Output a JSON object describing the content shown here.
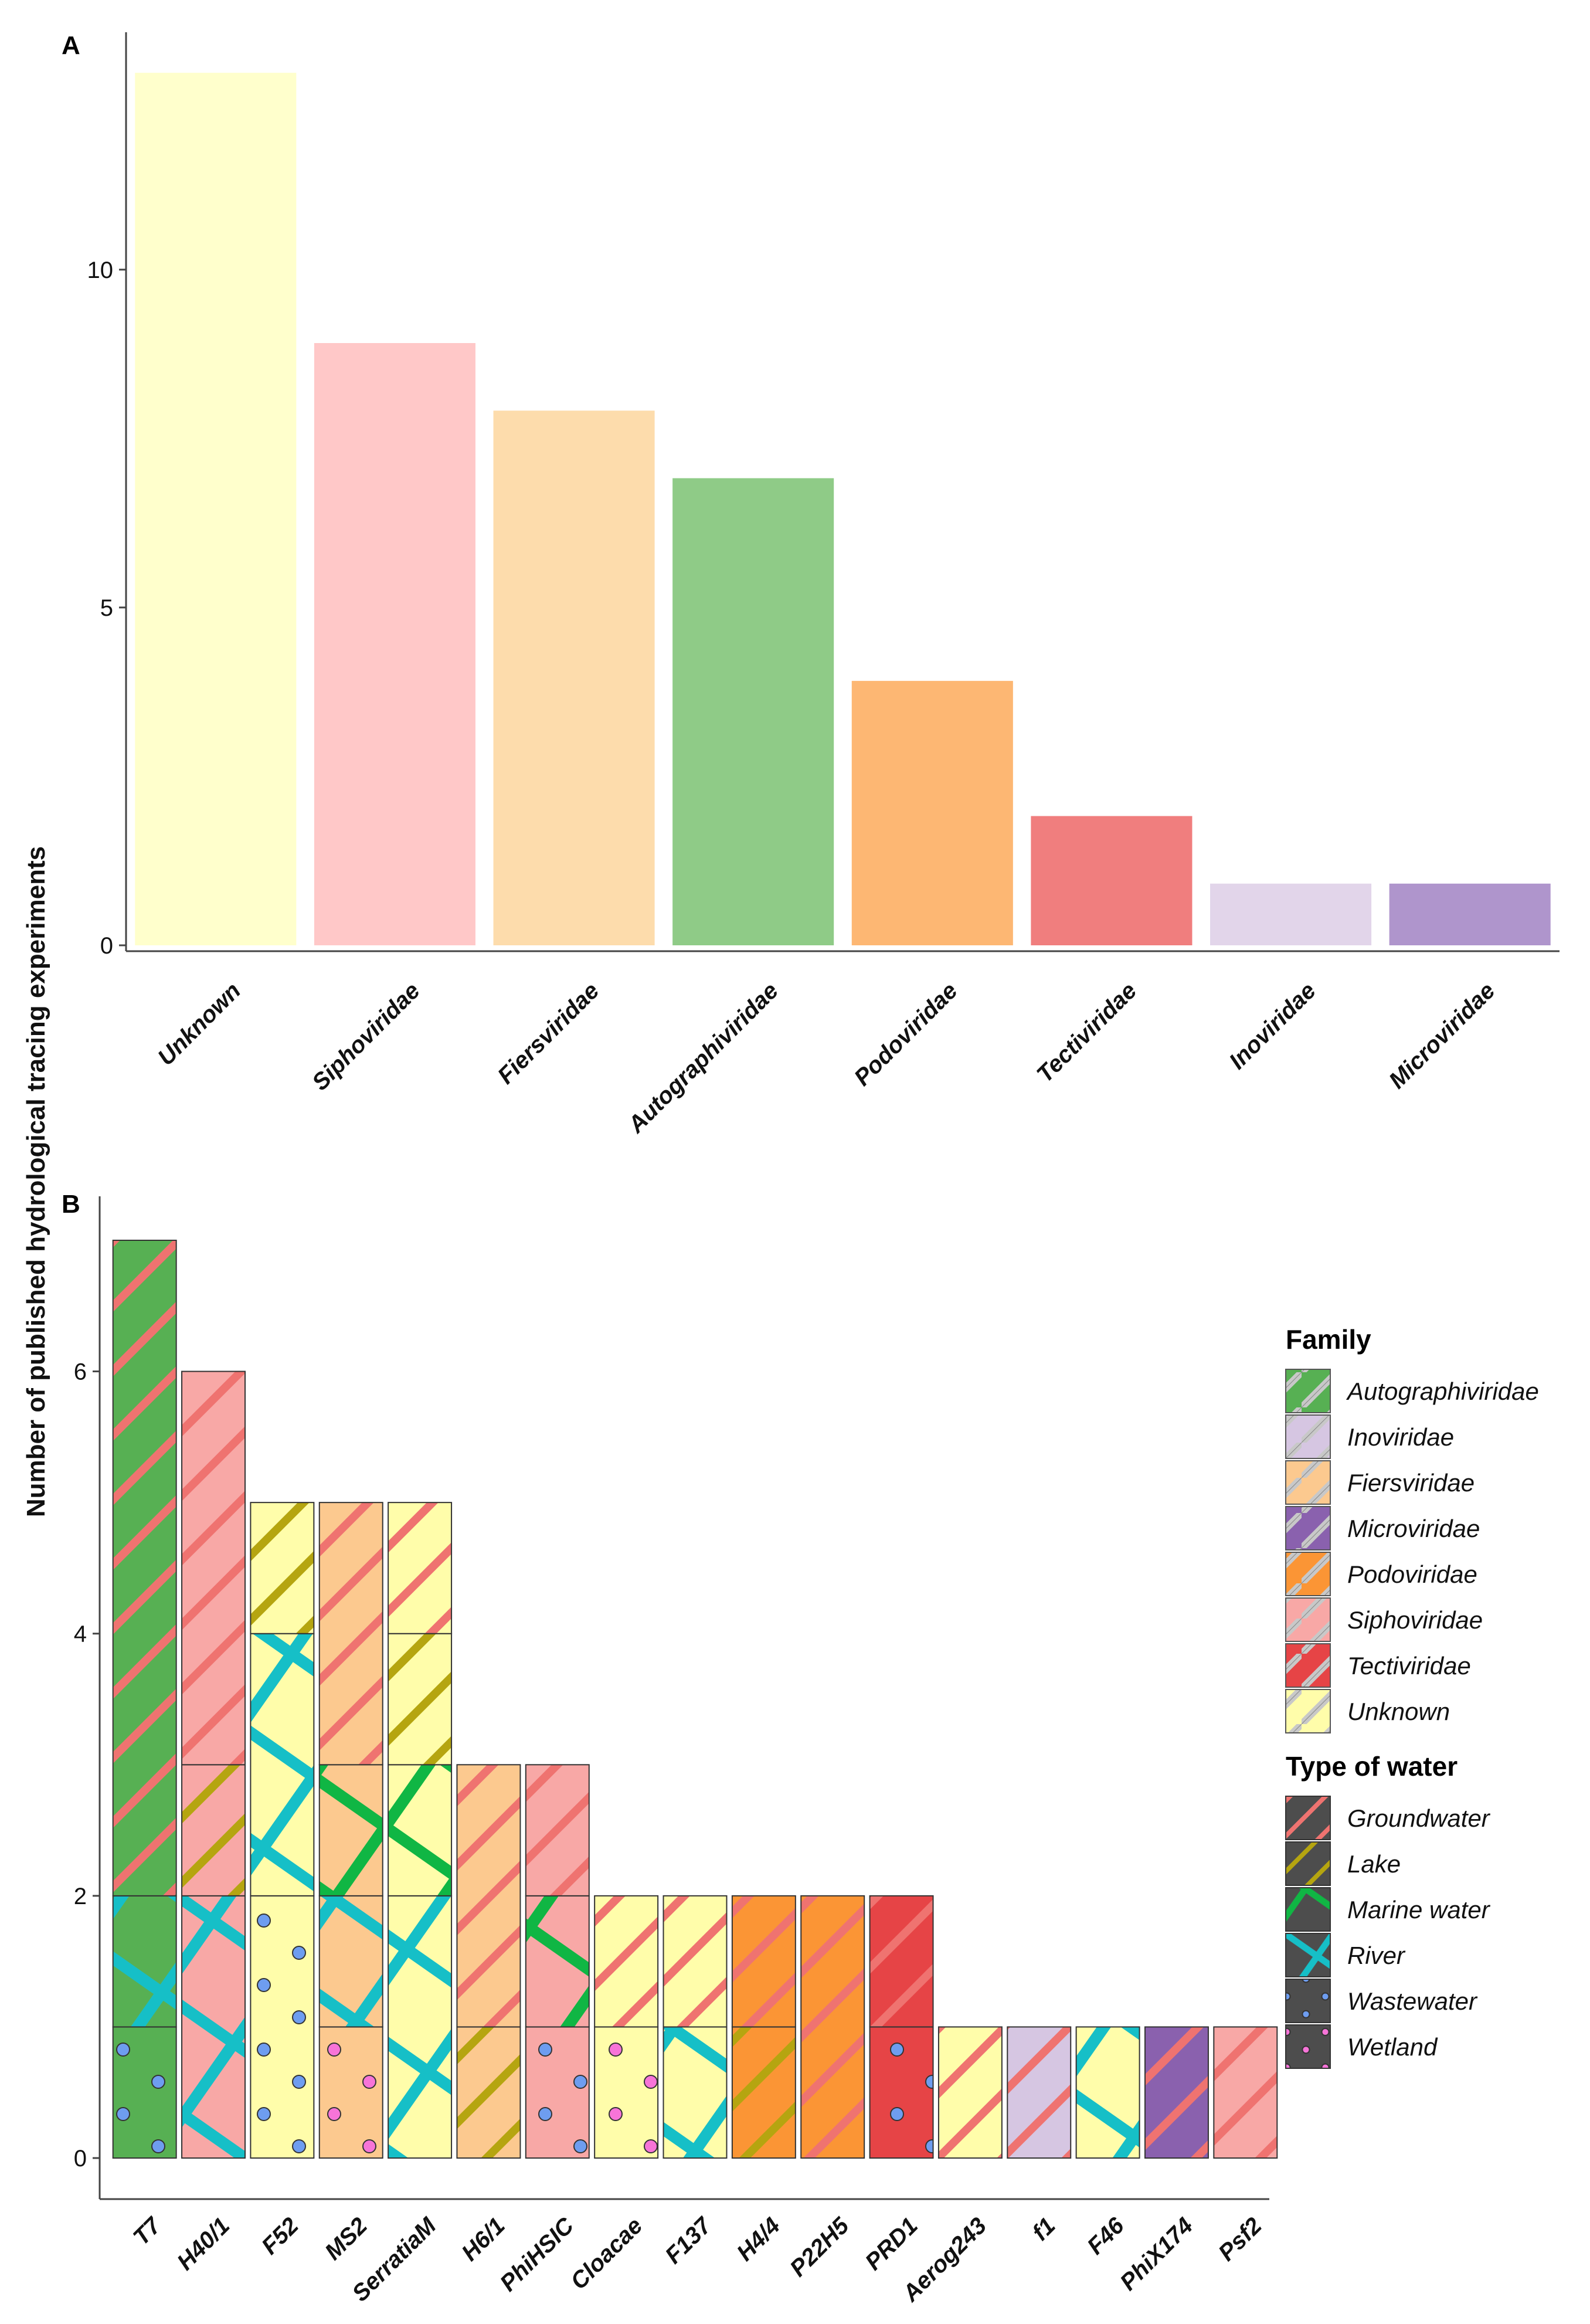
{
  "ylabel": "Number of published hydrological tracing experiments",
  "legend": {
    "family_title": "Family",
    "water_title": "Type of water"
  },
  "colors": {
    "A": {
      "Unknown": "#FFFFCC",
      "Siphoviridae": "#FFC8C8",
      "Fiersviridae": "#FDDCAC",
      "Autographiviridae": "#8FCB87",
      "Podoviridae": "#FDB773",
      "Tectiviridae": "#F07E7E",
      "Inoviridae": "#E2D5EA",
      "Microviridae": "#AF95CC"
    },
    "B": {
      "Autographiviridae": "#57B053",
      "Inoviridae": "#D6C6E2",
      "Fiersviridae": "#FCC98F",
      "Microviridae": "#8A61AE",
      "Podoviridae": "#FB9535",
      "Siphoviridae": "#F8A8A6",
      "Tectiviridae": "#E64446",
      "Unknown": "#FFFDAA"
    },
    "water": {
      "Groundwater": "#EF7370",
      "Lake": "#B5A510",
      "Marine water": "#10B644",
      "River": "#16BFC7",
      "Wastewater": "#6E9DF0",
      "Wetland": "#F774D8"
    }
  },
  "chart_data": [
    {
      "panel": "A",
      "type": "bar",
      "title": "",
      "xlabel": "",
      "ylabel": "Number of published hydrological tracing experiments",
      "categories": [
        "Unknown",
        "Siphoviridae",
        "Fiersviridae",
        "Autographiviridae",
        "Podoviridae",
        "Tectiviridae",
        "Inoviridae",
        "Microviridae"
      ],
      "values": [
        13,
        9,
        8,
        7,
        4,
        2,
        1,
        1
      ],
      "yticks": [
        0,
        5,
        10
      ],
      "ylim": [
        0,
        13.6
      ]
    },
    {
      "panel": "B",
      "type": "bar",
      "stacked": true,
      "title": "",
      "xlabel": "",
      "ylabel": "Number of published hydrological tracing experiments",
      "yticks": [
        0,
        2,
        4,
        6
      ],
      "ylim": [
        0,
        7.4
      ],
      "families": [
        "Autographiviridae",
        "Inoviridae",
        "Fiersviridae",
        "Microviridae",
        "Podoviridae",
        "Siphoviridae",
        "Tectiviridae",
        "Unknown"
      ],
      "water_types": [
        "Groundwater",
        "Lake",
        "Marine water",
        "River",
        "Wastewater",
        "Wetland"
      ],
      "categories": [
        "T7",
        "H40/1",
        "F52",
        "MS2",
        "SerratiaM",
        "H6/1",
        "PhiHSIC",
        "Cloacae",
        "F137",
        "H4/4",
        "P22H5",
        "PRD1",
        "Aerog243",
        "f1",
        "F46",
        "PhiX174",
        "Psf2"
      ],
      "bars": [
        {
          "name": "T7",
          "family": "Autographiviridae",
          "segments": [
            {
              "water": "Wastewater",
              "count": 1
            },
            {
              "water": "River",
              "count": 1
            },
            {
              "water": "Groundwater",
              "count": 5
            }
          ]
        },
        {
          "name": "H40/1",
          "family": "Siphoviridae",
          "segments": [
            {
              "water": "River",
              "count": 2
            },
            {
              "water": "Lake",
              "count": 1
            },
            {
              "water": "Groundwater",
              "count": 3
            }
          ]
        },
        {
          "name": "F52",
          "family": "Unknown",
          "segments": [
            {
              "water": "Wastewater",
              "count": 2
            },
            {
              "water": "River",
              "count": 2
            },
            {
              "water": "Lake",
              "count": 1
            }
          ]
        },
        {
          "name": "MS2",
          "family": "Fiersviridae",
          "segments": [
            {
              "water": "Wetland",
              "count": 1
            },
            {
              "water": "River",
              "count": 1
            },
            {
              "water": "Marine water",
              "count": 1
            },
            {
              "water": "Groundwater",
              "count": 2
            }
          ]
        },
        {
          "name": "SerratiaM",
          "family": "Unknown",
          "segments": [
            {
              "water": "River",
              "count": 2
            },
            {
              "water": "Marine water",
              "count": 1
            },
            {
              "water": "Lake",
              "count": 1
            },
            {
              "water": "Groundwater",
              "count": 1
            }
          ]
        },
        {
          "name": "H6/1",
          "family": "Fiersviridae",
          "segments": [
            {
              "water": "Lake",
              "count": 1
            },
            {
              "water": "Groundwater",
              "count": 2
            }
          ]
        },
        {
          "name": "PhiHSIC",
          "family": "Siphoviridae",
          "segments": [
            {
              "water": "Wastewater",
              "count": 1
            },
            {
              "water": "Marine water",
              "count": 1
            },
            {
              "water": "Groundwater",
              "count": 1
            }
          ]
        },
        {
          "name": "Cloacae",
          "family": "Unknown",
          "segments": [
            {
              "water": "Wetland",
              "count": 1
            },
            {
              "water": "Groundwater",
              "count": 1
            }
          ]
        },
        {
          "name": "F137",
          "family": "Unknown",
          "segments": [
            {
              "water": "River",
              "count": 1
            },
            {
              "water": "Groundwater",
              "count": 1
            }
          ]
        },
        {
          "name": "H4/4",
          "family": "Podoviridae",
          "segments": [
            {
              "water": "Lake",
              "count": 1
            },
            {
              "water": "Groundwater",
              "count": 1
            }
          ]
        },
        {
          "name": "P22H5",
          "family": "Podoviridae",
          "segments": [
            {
              "water": "Groundwater",
              "count": 2
            }
          ]
        },
        {
          "name": "PRD1",
          "family": "Tectiviridae",
          "segments": [
            {
              "water": "Wastewater",
              "count": 1
            },
            {
              "water": "Groundwater",
              "count": 1
            }
          ]
        },
        {
          "name": "Aerog243",
          "family": "Unknown",
          "segments": [
            {
              "water": "Groundwater",
              "count": 1
            }
          ]
        },
        {
          "name": "f1",
          "family": "Inoviridae",
          "segments": [
            {
              "water": "Groundwater",
              "count": 1
            }
          ]
        },
        {
          "name": "F46",
          "family": "Unknown",
          "segments": [
            {
              "water": "River",
              "count": 1
            }
          ]
        },
        {
          "name": "PhiX174",
          "family": "Microviridae",
          "segments": [
            {
              "water": "Groundwater",
              "count": 1
            }
          ]
        },
        {
          "name": "Psf2",
          "family": "Siphoviridae",
          "segments": [
            {
              "water": "Groundwater",
              "count": 1
            }
          ]
        }
      ]
    }
  ]
}
